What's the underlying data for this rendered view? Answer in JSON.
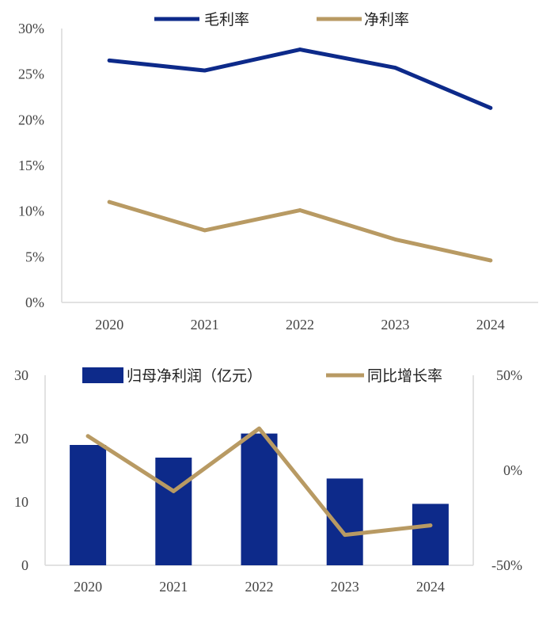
{
  "chart_data": [
    {
      "type": "line",
      "title": "",
      "categories": [
        "2020",
        "2021",
        "2022",
        "2023",
        "2024"
      ],
      "ylim": [
        0,
        30
      ],
      "y_ticks": [
        "0%",
        "5%",
        "10%",
        "15%",
        "20%",
        "25%",
        "30%"
      ],
      "legend_position": "top",
      "series": [
        {
          "name": "毛利率",
          "color": "#0d2a8a",
          "values": [
            26.5,
            25.4,
            27.7,
            25.7,
            21.3
          ]
        },
        {
          "name": "净利率",
          "color": "#b89a63",
          "values": [
            11.0,
            7.9,
            10.1,
            6.9,
            4.6
          ]
        }
      ]
    },
    {
      "type": "bar+line",
      "title": "",
      "categories": [
        "2020",
        "2021",
        "2022",
        "2023",
        "2024"
      ],
      "ylim": [
        0,
        30
      ],
      "y_ticks": [
        "0",
        "10",
        "20",
        "30"
      ],
      "y2lim": [
        -50,
        50
      ],
      "y2_ticks": [
        "-50%",
        "0%",
        "50%"
      ],
      "legend_position": "top",
      "series": [
        {
          "name": "归母净利润（亿元）",
          "kind": "bar",
          "axis": "left",
          "color": "#0d2a8a",
          "values": [
            19.0,
            17.0,
            20.8,
            13.7,
            9.7
          ]
        },
        {
          "name": "同比增长率",
          "kind": "line",
          "axis": "right",
          "color": "#b89a63",
          "values": [
            18,
            -11,
            22,
            -34,
            -29
          ]
        }
      ]
    }
  ]
}
